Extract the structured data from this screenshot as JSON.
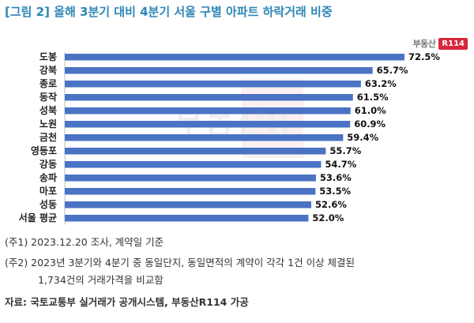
{
  "title": "[그림 2] 올해 3분기 대비 4분기 서울 구별 아파트 하락거래 비중",
  "logo": {
    "word": "부동산",
    "badge": "R114"
  },
  "watermark": "부동산R",
  "notes": {
    "note1": "(주1) 2023.12.20 조사, 계약일 기준",
    "note2_line1": "(주2) 2023년 3분기와 4분기 중 동일단지, 동일면적의 계약이 각각 1건 이상 체결된",
    "note2_line2": "1,734건의 거래가격을 비교함",
    "source": "자료: 국토교통부 실거래가 공개시스템, 부동산R114 가공"
  },
  "chart_data": {
    "type": "bar",
    "orientation": "horizontal",
    "categories": [
      "도봉",
      "강북",
      "종로",
      "동작",
      "성북",
      "노원",
      "금천",
      "영등포",
      "강동",
      "송파",
      "마포",
      "성동",
      "서울 평균"
    ],
    "values": [
      72.5,
      65.7,
      63.2,
      61.5,
      61.0,
      60.9,
      59.4,
      55.7,
      54.7,
      53.6,
      53.5,
      52.6,
      52.0
    ],
    "value_labels": [
      "72.5%",
      "65.7%",
      "63.2%",
      "61.5%",
      "61.0%",
      "60.9%",
      "59.4%",
      "55.7%",
      "54.7%",
      "53.6%",
      "53.5%",
      "52.6%",
      "52.0%"
    ],
    "unit": "%",
    "xlim": [
      0,
      72.5
    ],
    "bar_color": "#4a73c4",
    "grid": false,
    "legend": "none"
  }
}
